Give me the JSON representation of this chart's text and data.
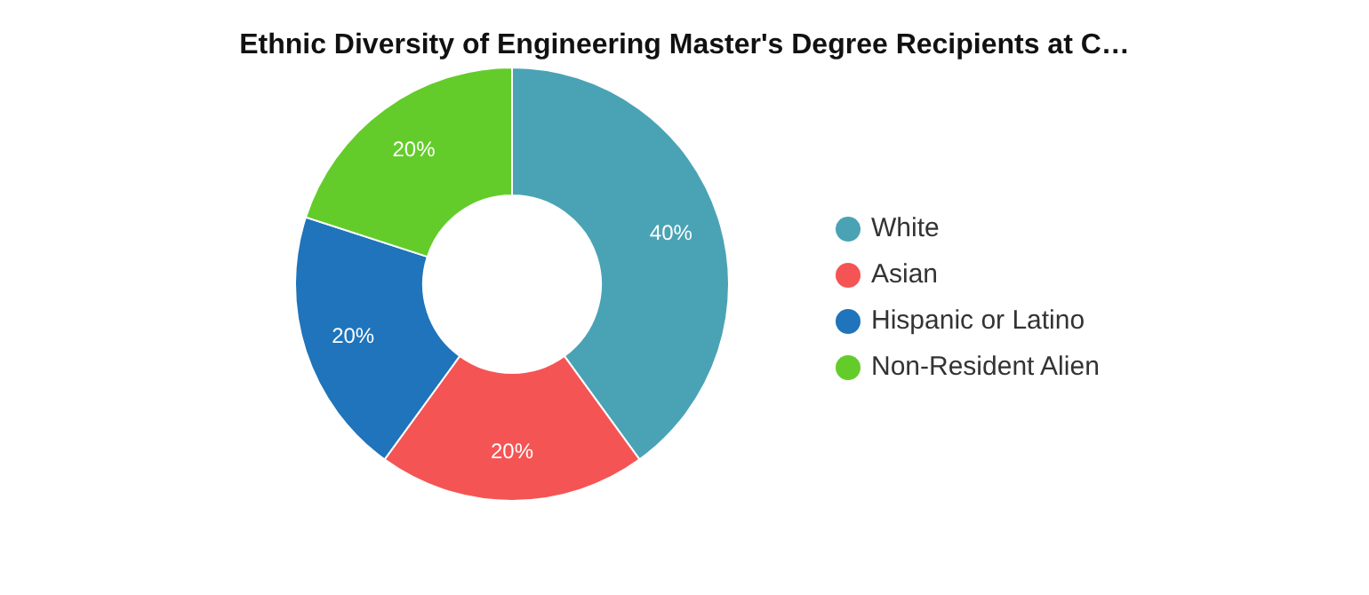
{
  "chart_data": {
    "type": "donut",
    "title": "Ethnic Diversity of Engineering Master's Degree Recipients at C…",
    "categories": [
      "White",
      "Asian",
      "Hispanic or Latino",
      "Non-Resident Alien"
    ],
    "values": [
      40,
      20,
      20,
      20
    ],
    "value_labels": [
      "40%",
      "20%",
      "20%",
      "20%"
    ],
    "colors": [
      "#4aa3b5",
      "#f55454",
      "#1f74bb",
      "#63cc2a"
    ],
    "legend": "right"
  }
}
